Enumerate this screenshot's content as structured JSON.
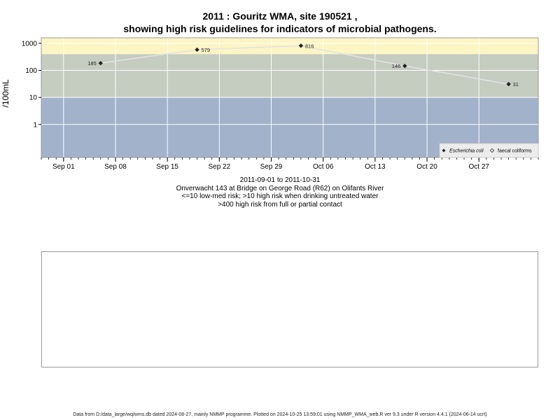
{
  "title": {
    "line1": "2011 : Gouritz WMA, site 190521 ,",
    "line2": "showing high risk guidelines for indicators of microbial pathogens."
  },
  "caption": {
    "line1": "2011-09-01 to 2011-10-31",
    "line2": "Onverwacht 143 at Bridge on George Road (R62) on Olifants River",
    "line3": "<=10 low-med risk; >10 high risk when drinking untreated water",
    "line4": ">400 high risk from full or partial contact"
  },
  "footer": "Data from D:/data_large/wq/wms.db dated 2024-08-27, mainly NMMP programme. Plotted on 2024-10-25 13:59:01 using NMMP_WMA_web.R ver 9.3 under R version 4.4.1 (2024-06-14 ucrt)",
  "chart_data": {
    "type": "line",
    "ylabel": "/100mL",
    "y_scale": "log10",
    "ylim": [
      0.06,
      1600
    ],
    "xlim": [
      "2011-08-29",
      "2011-11-04"
    ],
    "y_ticks": [
      {
        "value": 1,
        "label": "1"
      },
      {
        "value": 10,
        "label": "10"
      },
      {
        "value": 100,
        "label": "100"
      },
      {
        "value": 1000,
        "label": "1000"
      }
    ],
    "x_ticks": [
      {
        "date": "2011-09-01",
        "label": "Sep 01"
      },
      {
        "date": "2011-09-08",
        "label": "Sep 08"
      },
      {
        "date": "2011-09-15",
        "label": "Sep 15"
      },
      {
        "date": "2011-09-22",
        "label": "Sep 22"
      },
      {
        "date": "2011-09-29",
        "label": "Sep 29"
      },
      {
        "date": "2011-10-06",
        "label": "Oct 06"
      },
      {
        "date": "2011-10-13",
        "label": "Oct 13"
      },
      {
        "date": "2011-10-20",
        "label": "Oct 20"
      },
      {
        "date": "2011-10-27",
        "label": "Oct 27"
      }
    ],
    "risk_bands": [
      {
        "from": 0.06,
        "to": 10,
        "color": "#a2b2ca"
      },
      {
        "from": 10,
        "to": 400,
        "color": "#c5ccc0"
      },
      {
        "from": 400,
        "to": 1600,
        "color": "#fdf5c3"
      }
    ],
    "gridlines": true,
    "legend_position": "bottom-right",
    "series": [
      {
        "name": "Escherichia coli",
        "marker": "filled-diamond",
        "color": "#222222",
        "line_color": "#e2e2e2",
        "points": [
          {
            "date": "2011-09-06",
            "value": 185,
            "label": "185",
            "label_side": "left"
          },
          {
            "date": "2011-09-19",
            "value": 579,
            "label": "579",
            "label_side": "right"
          },
          {
            "date": "2011-10-03",
            "value": 816,
            "label": "816",
            "label_side": "right"
          },
          {
            "date": "2011-10-17",
            "value": 146,
            "label": "146",
            "label_side": "left"
          },
          {
            "date": "2011-10-31",
            "value": 31,
            "label": "31",
            "label_side": "right"
          }
        ]
      },
      {
        "name": "faecal coliforms",
        "marker": "open-diamond",
        "color": "#222222",
        "points": []
      }
    ]
  }
}
